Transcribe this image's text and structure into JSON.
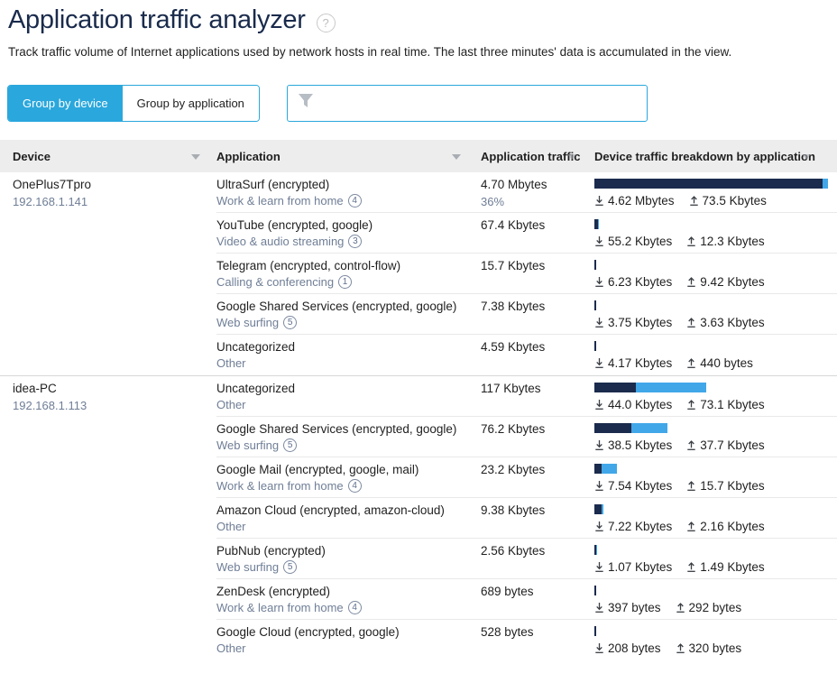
{
  "page": {
    "title": "Application traffic analyzer",
    "description": "Track traffic volume of Internet applications used by network hosts in real time. The last three minutes' data is accumulated in the view."
  },
  "tabs": [
    {
      "label": "Group by device",
      "active": true
    },
    {
      "label": "Group by application",
      "active": false
    }
  ],
  "filter": {
    "value": "",
    "placeholder": ""
  },
  "colors": {
    "accent_blue": "#2aa7dc",
    "bar_download_navy": "#1b2b4d",
    "bar_upload_blue": "#41a7e8",
    "muted_text": "#6f7e96",
    "title_navy": "#1a2b4c",
    "header_bg": "#ededee"
  },
  "table": {
    "columns": [
      "Device",
      "Application",
      "Application traffic",
      "Device traffic breakdown by application"
    ],
    "groups": [
      {
        "device": "OnePlus7Tpro",
        "ip": "192.168.1.141",
        "rows": [
          {
            "app": "UltraSurf (encrypted)",
            "category": "Work & learn from home",
            "category_badge": "4",
            "traffic": "4.70 Mbytes",
            "percent": "36%",
            "download": "4.62 Mbytes",
            "upload": "73.5 Kbytes",
            "bar_down_pct": 96.9,
            "bar_up_pct": 2.3
          },
          {
            "app": "YouTube (encrypted, google)",
            "category": "Video & audio streaming",
            "category_badge": "3",
            "traffic": "67.4 Kbytes",
            "percent": "",
            "download": "55.2 Kbytes",
            "upload": "12.3 Kbytes",
            "bar_down_pct": 1.5,
            "bar_up_pct": 0.3
          },
          {
            "app": "Telegram (encrypted, control-flow)",
            "category": "Calling & conferencing",
            "category_badge": "1",
            "traffic": "15.7 Kbytes",
            "percent": "",
            "download": "6.23 Kbytes",
            "upload": "9.42 Kbytes",
            "bar_down_pct": 0.9,
            "bar_up_pct": 0
          },
          {
            "app": "Google Shared Services (encrypted, google)",
            "category": "Web surfing",
            "category_badge": "5",
            "traffic": "7.38 Kbytes",
            "percent": "",
            "download": "3.75 Kbytes",
            "upload": "3.63 Kbytes",
            "bar_down_pct": 0.9,
            "bar_up_pct": 0
          },
          {
            "app": "Uncategorized",
            "category": "Other",
            "category_badge": "",
            "traffic": "4.59 Kbytes",
            "percent": "",
            "download": "4.17 Kbytes",
            "upload": "440 bytes",
            "bar_down_pct": 0.8,
            "bar_up_pct": 0
          }
        ]
      },
      {
        "device": "idea-PC",
        "ip": "192.168.1.113",
        "rows": [
          {
            "app": "Uncategorized",
            "category": "Other",
            "category_badge": "",
            "traffic": "117 Kbytes",
            "percent": "",
            "download": "44.0 Kbytes",
            "upload": "73.1 Kbytes",
            "bar_down_pct": 17.6,
            "bar_up_pct": 29.9
          },
          {
            "app": "Google Shared Services (encrypted, google)",
            "category": "Web surfing",
            "category_badge": "5",
            "traffic": "76.2 Kbytes",
            "percent": "",
            "download": "38.5 Kbytes",
            "upload": "37.7 Kbytes",
            "bar_down_pct": 15.7,
            "bar_up_pct": 15.3
          },
          {
            "app": "Google Mail (encrypted, google, mail)",
            "category": "Work & learn from home",
            "category_badge": "4",
            "traffic": "23.2 Kbytes",
            "percent": "",
            "download": "7.54 Kbytes",
            "upload": "15.7 Kbytes",
            "bar_down_pct": 3.1,
            "bar_up_pct": 6.5
          },
          {
            "app": "Amazon Cloud (encrypted, amazon-cloud)",
            "category": "Other",
            "category_badge": "",
            "traffic": "9.38 Kbytes",
            "percent": "",
            "download": "7.22 Kbytes",
            "upload": "2.16 Kbytes",
            "bar_down_pct": 3.0,
            "bar_up_pct": 0.9
          },
          {
            "app": "PubNub (encrypted)",
            "category": "Web surfing",
            "category_badge": "5",
            "traffic": "2.56 Kbytes",
            "percent": "",
            "download": "1.07 Kbytes",
            "upload": "1.49 Kbytes",
            "bar_down_pct": 0.6,
            "bar_up_pct": 0.6
          },
          {
            "app": "ZenDesk (encrypted)",
            "category": "Work & learn from home",
            "category_badge": "4",
            "traffic": "689 bytes",
            "percent": "",
            "download": "397 bytes",
            "upload": "292 bytes",
            "bar_down_pct": 0.8,
            "bar_up_pct": 0
          },
          {
            "app": "Google Cloud (encrypted, google)",
            "category": "Other",
            "category_badge": "",
            "traffic": "528 bytes",
            "percent": "",
            "download": "208 bytes",
            "upload": "320 bytes",
            "bar_down_pct": 0.8,
            "bar_up_pct": 0
          }
        ]
      }
    ]
  }
}
